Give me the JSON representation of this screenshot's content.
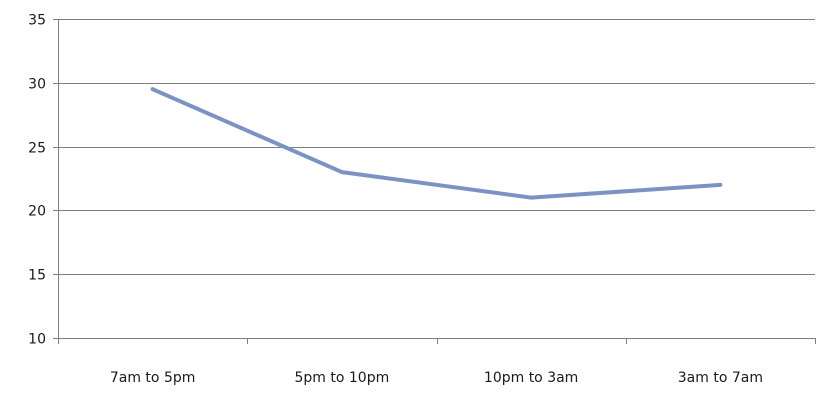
{
  "chart_data": {
    "type": "line",
    "title": "",
    "xlabel": "",
    "ylabel": "",
    "categories": [
      "7am to 5pm",
      "5pm to 10pm",
      "10pm to 3am",
      "3am to 7am"
    ],
    "series": [
      {
        "values": [
          29.5,
          23,
          21,
          22
        ]
      }
    ],
    "ylim": [
      10,
      35
    ],
    "yticks": [
      10,
      15,
      20,
      25,
      30,
      35
    ],
    "grid": true,
    "legend": "none",
    "colors": {
      "line": "#7b93c4",
      "grid": "#7f7f7f",
      "axis": "#7f7f7f",
      "text": "#1a1a1a"
    }
  }
}
